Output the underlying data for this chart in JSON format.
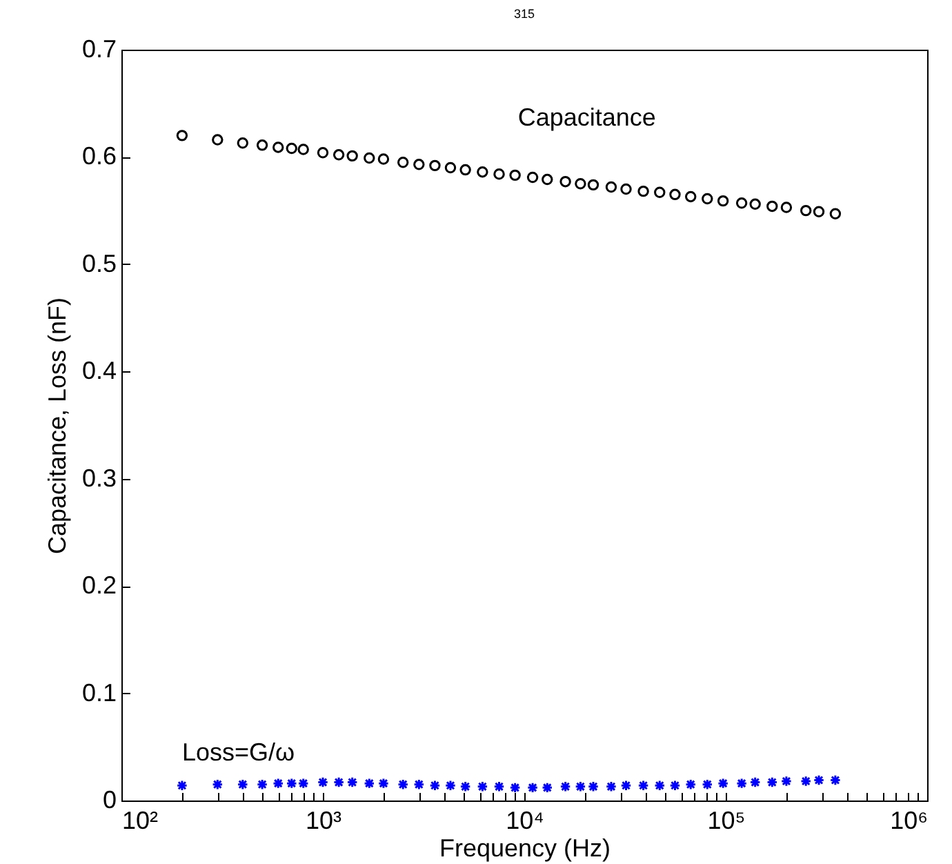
{
  "chart_data": {
    "type": "scatter",
    "title": "315",
    "xlabel": "Frequency (Hz)",
    "ylabel": "Capacitance, Loss (nF)",
    "log": "x",
    "grid": false,
    "xlim": [
      100,
      1000000
    ],
    "ylim": [
      0,
      0.7
    ],
    "xticks": [
      {
        "value": 100,
        "label": "10²"
      },
      {
        "value": 200,
        "label": null
      },
      {
        "value": 300,
        "label": null
      },
      {
        "value": 400,
        "label": null
      },
      {
        "value": 500,
        "label": null
      },
      {
        "value": 600,
        "label": null
      },
      {
        "value": 700,
        "label": null
      },
      {
        "value": 800,
        "label": null
      },
      {
        "value": 900,
        "label": null
      },
      {
        "value": 1000,
        "label": "10³"
      },
      {
        "value": 2000,
        "label": null
      },
      {
        "value": 3000,
        "label": null
      },
      {
        "value": 4000,
        "label": null
      },
      {
        "value": 5000,
        "label": null
      },
      {
        "value": 6000,
        "label": null
      },
      {
        "value": 7000,
        "label": null
      },
      {
        "value": 8000,
        "label": null
      },
      {
        "value": 9000,
        "label": null
      },
      {
        "value": 10000,
        "label": "10⁴"
      },
      {
        "value": 20000,
        "label": null
      },
      {
        "value": 30000,
        "label": null
      },
      {
        "value": 40000,
        "label": null
      },
      {
        "value": 50000,
        "label": null
      },
      {
        "value": 60000,
        "label": null
      },
      {
        "value": 70000,
        "label": null
      },
      {
        "value": 80000,
        "label": null
      },
      {
        "value": 90000,
        "label": null
      },
      {
        "value": 100000,
        "label": "10⁵"
      },
      {
        "value": 200000,
        "label": null
      },
      {
        "value": 300000,
        "label": null
      },
      {
        "value": 400000,
        "label": null
      },
      {
        "value": 500000,
        "label": null
      },
      {
        "value": 600000,
        "label": null
      },
      {
        "value": 700000,
        "label": null
      },
      {
        "value": 800000,
        "label": null
      },
      {
        "value": 900000,
        "label": null
      },
      {
        "value": 1000000,
        "label": "10⁶"
      }
    ],
    "yticks": [
      0,
      0.1,
      0.2,
      0.3,
      0.4,
      0.5,
      0.6,
      0.7
    ],
    "x": [
      200,
      300,
      400,
      500,
      600,
      700,
      800,
      1000,
      1200,
      1400,
      1700,
      2000,
      2500,
      3000,
      3600,
      4300,
      5100,
      6200,
      7500,
      9000,
      11000,
      13000,
      16000,
      19000,
      22000,
      27000,
      32000,
      39000,
      47000,
      56000,
      67000,
      81000,
      97000,
      120000,
      140000,
      170000,
      200000,
      250000,
      290000,
      350000
    ],
    "series": [
      {
        "name": "Capacitance",
        "color": "#000000",
        "marker": "circle",
        "values": [
          0.62,
          0.616,
          0.613,
          0.611,
          0.609,
          0.608,
          0.607,
          0.604,
          0.602,
          0.601,
          0.599,
          0.598,
          0.595,
          0.593,
          0.592,
          0.59,
          0.588,
          0.586,
          0.584,
          0.583,
          0.581,
          0.579,
          0.577,
          0.575,
          0.574,
          0.572,
          0.57,
          0.568,
          0.567,
          0.565,
          0.563,
          0.561,
          0.559,
          0.557,
          0.556,
          0.554,
          0.553,
          0.55,
          0.549,
          0.547
        ]
      },
      {
        "name": "Loss=G/ω",
        "color": "#0000ff",
        "marker": "cross",
        "values": [
          0.014,
          0.015,
          0.015,
          0.015,
          0.016,
          0.016,
          0.016,
          0.017,
          0.017,
          0.017,
          0.016,
          0.016,
          0.015,
          0.015,
          0.014,
          0.014,
          0.013,
          0.013,
          0.013,
          0.012,
          0.012,
          0.012,
          0.013,
          0.013,
          0.013,
          0.013,
          0.014,
          0.014,
          0.014,
          0.014,
          0.015,
          0.015,
          0.016,
          0.016,
          0.017,
          0.017,
          0.018,
          0.018,
          0.019,
          0.019
        ]
      }
    ]
  }
}
